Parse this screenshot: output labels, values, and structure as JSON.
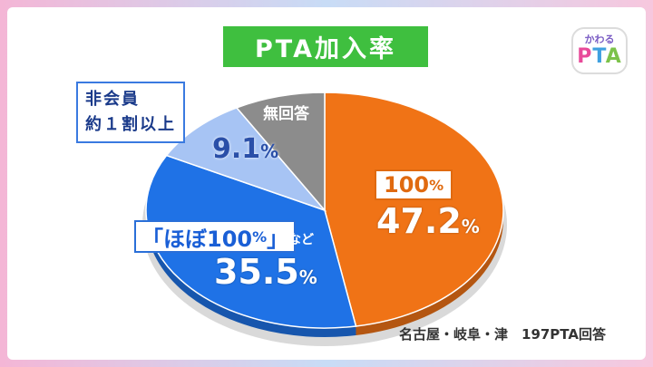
{
  "colors": {
    "orange": "#f07316",
    "blue": "#1f72e6",
    "light_blue": "#a7c4f4",
    "gray": "#8c8c8c",
    "title_green": "#3fbf3f"
  },
  "title": "PTA加入率",
  "logo": {
    "small": "かわる",
    "big_p": "P",
    "big_t": "T",
    "big_a": "A"
  },
  "source": "名古屋・岐阜・津　197PTA回答",
  "chart_data": {
    "type": "pie",
    "title": "PTA加入率",
    "slices": [
      {
        "key": "full",
        "label_main": "100",
        "label_unit": "%",
        "value_num": "47.2",
        "value_unit": "%",
        "value": 47.2,
        "color": "#f07316"
      },
      {
        "key": "almost",
        "label_main": "「ほぼ100",
        "label_unit": "%",
        "label_close": "」",
        "label_suffix": "など",
        "value_num": "35.5",
        "value_unit": "%",
        "value": 35.5,
        "color": "#1f72e6"
      },
      {
        "key": "nonmember",
        "label_line1": "非会員",
        "label_line2": "約１割以上",
        "value_num": "9.1",
        "value_unit": "%",
        "value": 9.1,
        "color": "#a7c4f4"
      },
      {
        "key": "noanswer",
        "label": "無回答",
        "value": 8.2,
        "color": "#8c8c8c"
      }
    ]
  }
}
